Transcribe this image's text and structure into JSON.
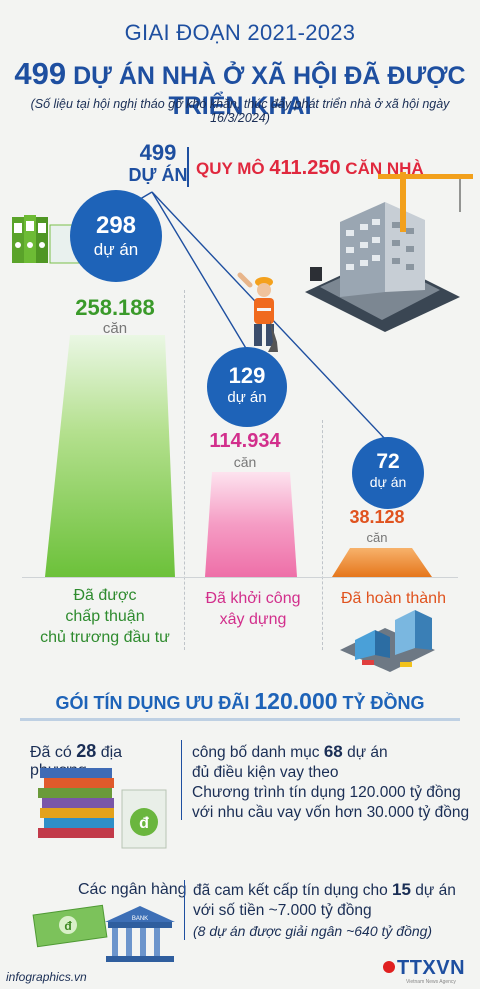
{
  "header": {
    "period": "GIAI ĐOẠN 2021-2023",
    "title_num": "499",
    "title_rest": " DỰ ÁN NHÀ Ở XÃ HỘI ĐÃ ĐƯỢC TRIỂN KHAI",
    "note": "(Số liệu tại hội nghị tháo gỡ khó khăn, thúc đẩy phát triển nhà ở xã hội ngày 16/3/2024)"
  },
  "summary": {
    "total_num": "499",
    "total_unit": "DỰ ÁN",
    "scale_label": "QUY MÔ ",
    "scale_value": "411.250",
    "scale_unit": " CĂN NHÀ"
  },
  "stages": [
    {
      "projects": "298",
      "project_unit": "dự án",
      "homes": "258.188",
      "home_unit": "căn",
      "label_lines": [
        "Đã được",
        "chấp thuận",
        "chủ trương đầu tư"
      ],
      "color": "#3a9a2a"
    },
    {
      "projects": "129",
      "project_unit": "dự án",
      "homes": "114.934",
      "home_unit": "căn",
      "label_lines": [
        "Đã khởi công",
        "xây dựng"
      ],
      "color": "#d22f8c"
    },
    {
      "projects": "72",
      "project_unit": "dự án",
      "homes": "38.128",
      "home_unit": "căn",
      "label_lines": [
        "Đã hoàn thành"
      ],
      "color": "#e0531f"
    }
  ],
  "credit": {
    "title_pre": "GÓI TÍN DỤNG ƯU ĐÃI ",
    "title_value": "120.000",
    "title_post": " TỶ ĐỒNG",
    "row1": {
      "left_pre": "Đã có ",
      "left_num": "28",
      "left_post": " địa phương",
      "right_pre": "công bố danh mục ",
      "right_num": "68",
      "right_post": " dự án",
      "right_line2": "đủ điều kiện vay theo",
      "right_line3": "Chương trình tín dụng 120.000 tỷ đồng",
      "right_line4": "với nhu cầu vay vốn hơn 30.000 tỷ đồng"
    },
    "row2": {
      "left": "Các ngân hàng",
      "right_pre": "đã cam kết cấp tín dụng cho ",
      "right_num": "15",
      "right_post": " dự án",
      "right_line2": "với số tiền ~7.000 tỷ đồng",
      "right_line3": "(8 dự án được giải ngân ~640 tỷ đồng)"
    }
  },
  "footer": {
    "site": "infographics.vn",
    "logo": "TTXVN",
    "logo_sub": "Vietnam News Agency",
    "bank_sign": "BANK",
    "money_symbol": "đ"
  },
  "colors": {
    "primary": "#1e4fa0",
    "circle": "#1e63b8",
    "accent_red": "#e0283e",
    "green": "#3a9a2a",
    "pink": "#d22f8c",
    "orange": "#e0531f"
  },
  "icons": [
    "binder-icon",
    "construction-worker-icon",
    "building-crane-icon",
    "finished-buildings-icon",
    "book-stack-icon",
    "money-document-icon",
    "banknote-icon",
    "bank-building-icon",
    "ttxvn-logo-icon"
  ]
}
